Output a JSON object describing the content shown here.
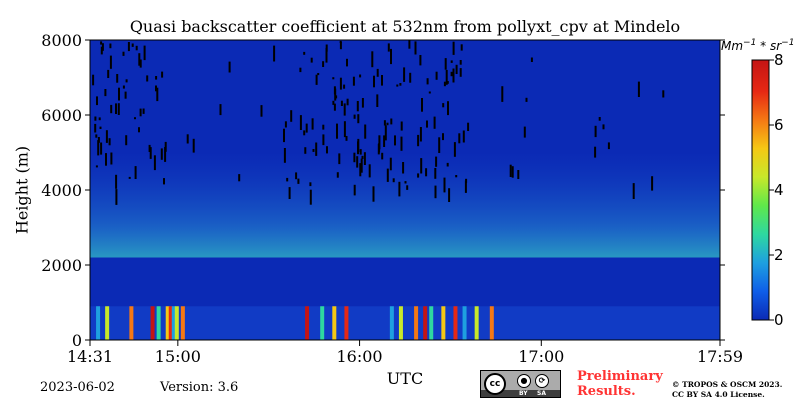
{
  "chart_data": {
    "type": "heatmap",
    "title": "Quasi backscatter coefficient at 532nm from pollyxt_cpv at Mindelo",
    "ylabel": "Height (m)",
    "xlabel": "UTC",
    "x_range": [
      "14:31",
      "17:59"
    ],
    "x_tick_labels": [
      "14:31",
      "15:00",
      "16:00",
      "17:00",
      "17:59"
    ],
    "ylim": [
      0,
      8000
    ],
    "y_tick_labels": [
      "0",
      "2000",
      "4000",
      "6000",
      "8000"
    ],
    "colorbar": {
      "unit_base": "Mm",
      "unit_exp1": "−1",
      "unit_mid": " * sr",
      "unit_exp2": "−1",
      "range": [
        0,
        8
      ],
      "tick_labels": [
        "0",
        "2",
        "4",
        "6",
        "8"
      ],
      "colormap": [
        "#0b2ab5",
        "#0f5ee8",
        "#1ea0e0",
        "#2ed8a0",
        "#5fe84a",
        "#c8e82a",
        "#f5c814",
        "#f57814",
        "#e62814",
        "#c41414"
      ]
    },
    "background_value": 0.3,
    "features": {
      "near_surface_layer_m": [
        0,
        900
      ],
      "aerosol_layer_m": [
        2200,
        5000
      ],
      "black_bands_m": [
        4000,
        8000
      ],
      "high_signal_spikes_utc": [
        "14:33",
        "14:36",
        "14:44",
        "14:51",
        "14:53",
        "14:56",
        "14:57",
        "14:58",
        "14:59",
        "15:01",
        "15:42",
        "15:47",
        "15:51",
        "15:55",
        "16:10",
        "16:13",
        "16:18",
        "16:21",
        "16:23",
        "16:27",
        "16:31",
        "16:34",
        "16:38",
        "16:43"
      ]
    }
  },
  "footer": {
    "date": "2023-06-02",
    "version": "Version: 3.6",
    "preliminary": "Preliminary Results.",
    "copyright_line1": "© TROPOS & OSCM 2023.",
    "copyright_line2": "CC BY SA 4.0 License.",
    "cc_text": "cc",
    "cc_by": "BY",
    "cc_sa": "SA"
  }
}
